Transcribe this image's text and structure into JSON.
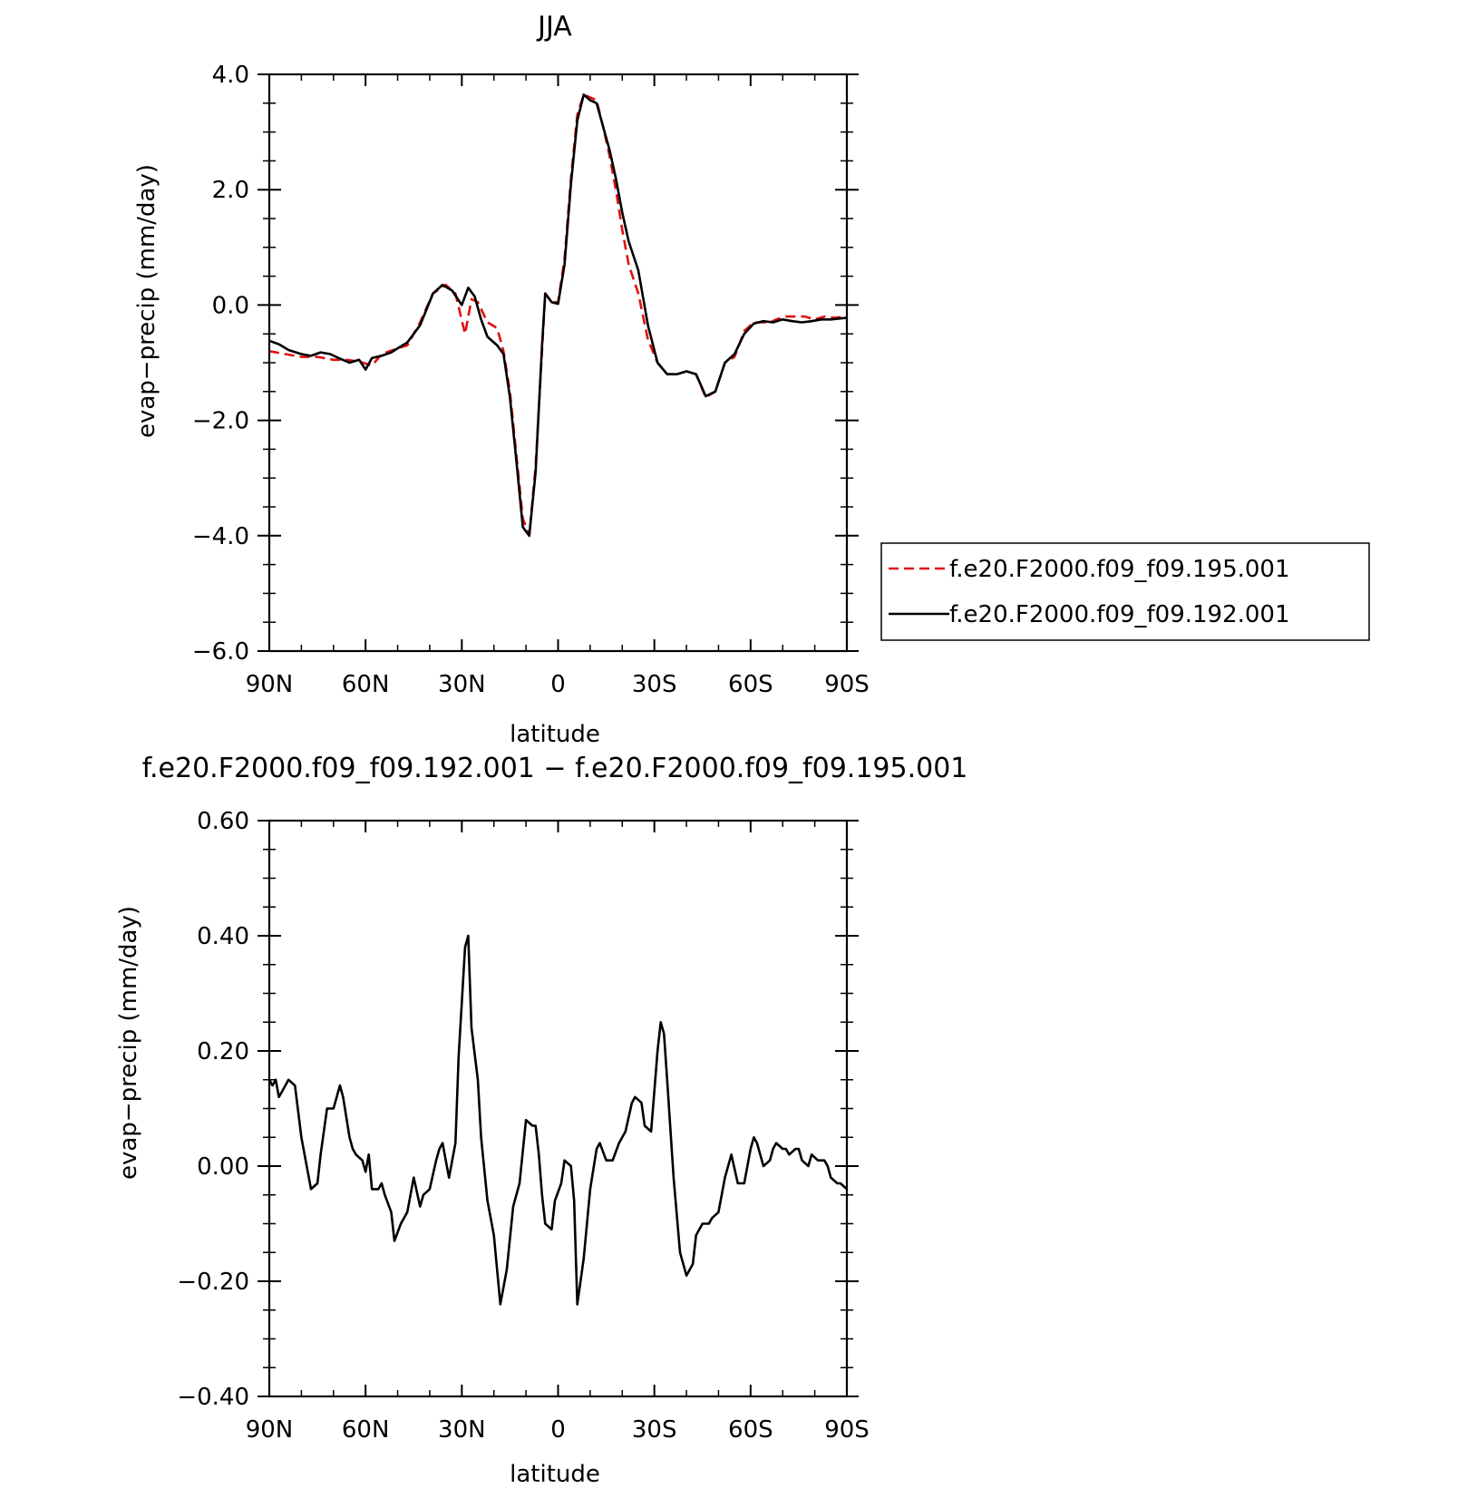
{
  "chart_data": [
    {
      "type": "line",
      "title": "JJA",
      "xlabel": "latitude",
      "ylabel": "evap−precip (mm/day)",
      "xlim": [
        90,
        -90
      ],
      "ylim": [
        -6.0,
        4.0
      ],
      "x_ticks": [
        90,
        60,
        30,
        0,
        -30,
        -60,
        -90
      ],
      "x_tick_labels": [
        "90N",
        "60N",
        "30N",
        "0",
        "30S",
        "60S",
        "90S"
      ],
      "y_ticks": [
        4.0,
        2.0,
        0.0,
        -2.0,
        -4.0,
        -6.0
      ],
      "y_tick_labels": [
        "4.0",
        "2.0",
        "0.0",
        "−2.0",
        "−4.0",
        "−6.0"
      ],
      "grid": false,
      "legend_position": "right",
      "series": [
        {
          "name": "f.e20.F2000.f09_f09.195.001",
          "color": "#e01010",
          "dash": "dashed",
          "x": [
            90,
            85,
            80,
            75,
            70,
            66,
            62,
            58,
            55,
            50,
            47,
            43,
            39,
            35,
            32,
            29,
            27,
            25,
            22,
            19,
            17,
            15,
            13,
            11,
            9,
            7,
            5,
            4,
            2,
            0,
            -2,
            -4,
            -6,
            -8,
            -10,
            -12,
            -14,
            -16,
            -18,
            -20,
            -22,
            -25,
            -28,
            -31,
            -34,
            -37,
            -40,
            -43,
            -46,
            -49,
            -52,
            -55,
            -58,
            -61,
            -64,
            -66,
            -68,
            -71,
            -74,
            -77,
            -80,
            -83,
            -86,
            -90
          ],
          "y": [
            -0.8,
            -0.85,
            -0.9,
            -0.9,
            -0.95,
            -0.95,
            -0.98,
            -1.05,
            -0.85,
            -0.75,
            -0.7,
            -0.3,
            0.2,
            0.35,
            0.2,
            -0.5,
            0.1,
            0.05,
            -0.3,
            -0.4,
            -0.8,
            -1.5,
            -2.6,
            -3.7,
            -4.0,
            -2.8,
            -0.8,
            0.2,
            0.05,
            0.05,
            0.8,
            2.2,
            3.3,
            3.65,
            3.6,
            3.55,
            3.1,
            2.6,
            2.0,
            1.3,
            0.7,
            0.2,
            -0.6,
            -1.0,
            -1.2,
            -1.2,
            -1.15,
            -1.2,
            -1.6,
            -1.5,
            -1.0,
            -0.9,
            -0.45,
            -0.3,
            -0.3,
            -0.3,
            -0.25,
            -0.2,
            -0.2,
            -0.2,
            -0.25,
            -0.2,
            -0.22,
            -0.2
          ]
        },
        {
          "name": "f.e20.F2000.f09_f09.192.001",
          "color": "#000000",
          "dash": "solid",
          "x": [
            90,
            87,
            84,
            80,
            77,
            74,
            71,
            68,
            65,
            62,
            60,
            58,
            55,
            52,
            50,
            47,
            43,
            39,
            36,
            33,
            30,
            28,
            26,
            24,
            22,
            19,
            17,
            15,
            13,
            11,
            9,
            7,
            5,
            4,
            2,
            0,
            -2,
            -4,
            -6,
            -8,
            -10,
            -12,
            -14,
            -16,
            -18,
            -20,
            -22,
            -25,
            -28,
            -31,
            -34,
            -37,
            -40,
            -43,
            -46,
            -49,
            -52,
            -55,
            -58,
            -61,
            -64,
            -67,
            -70,
            -73,
            -76,
            -79,
            -82,
            -85,
            -90
          ],
          "y": [
            -0.62,
            -0.68,
            -0.78,
            -0.85,
            -0.88,
            -0.82,
            -0.85,
            -0.93,
            -1.0,
            -0.95,
            -1.12,
            -0.92,
            -0.88,
            -0.82,
            -0.75,
            -0.65,
            -0.35,
            0.2,
            0.35,
            0.25,
            0.0,
            0.3,
            0.15,
            -0.25,
            -0.55,
            -0.7,
            -0.85,
            -1.6,
            -2.7,
            -3.85,
            -4.0,
            -2.9,
            -0.7,
            0.2,
            0.05,
            0.02,
            0.7,
            2.1,
            3.2,
            3.65,
            3.55,
            3.5,
            3.1,
            2.7,
            2.2,
            1.6,
            1.1,
            0.6,
            -0.35,
            -1.0,
            -1.2,
            -1.2,
            -1.15,
            -1.2,
            -1.58,
            -1.5,
            -1.0,
            -0.85,
            -0.5,
            -0.32,
            -0.28,
            -0.3,
            -0.25,
            -0.28,
            -0.3,
            -0.28,
            -0.25,
            -0.25,
            -0.22
          ]
        }
      ]
    },
    {
      "type": "line",
      "title": "f.e20.F2000.f09_f09.192.001 − f.e20.F2000.f09_f09.195.001",
      "xlabel": "latitude",
      "ylabel": "evap−precip (mm/day)",
      "xlim": [
        90,
        -90
      ],
      "ylim": [
        -0.4,
        0.6
      ],
      "x_ticks": [
        90,
        60,
        30,
        0,
        -30,
        -60,
        -90
      ],
      "x_tick_labels": [
        "90N",
        "60N",
        "30N",
        "0",
        "30S",
        "60S",
        "90S"
      ],
      "y_ticks": [
        0.6,
        0.4,
        0.2,
        0.0,
        -0.2,
        -0.4
      ],
      "y_tick_labels": [
        "0.60",
        "0.40",
        "0.20",
        "0.00",
        "−0.20",
        "−0.40"
      ],
      "grid": false,
      "series": [
        {
          "color": "#000000",
          "dash": "solid",
          "x": [
            90,
            89,
            88,
            87,
            86,
            84,
            82,
            80,
            79,
            77,
            75,
            74,
            72,
            70,
            68,
            67,
            65,
            64,
            63,
            61,
            60,
            59,
            58,
            56,
            55,
            54,
            52,
            51,
            49,
            48,
            47,
            46,
            45,
            43,
            42,
            40,
            38,
            37,
            36,
            34,
            32,
            31,
            29,
            28,
            27,
            25,
            24,
            22,
            20,
            18,
            16,
            14,
            12,
            10,
            8,
            7,
            6,
            5,
            4,
            2,
            1,
            -1,
            -2,
            -4,
            -5,
            -6,
            -8,
            -10,
            -12,
            -13,
            -15,
            -16,
            -17,
            -19,
            -21,
            -23,
            -24,
            -26,
            -27,
            -29,
            -31,
            -32,
            -33,
            -34,
            -36,
            -38,
            -40,
            -42,
            -43,
            -45,
            -47,
            -48,
            -50,
            -52,
            -54,
            -56,
            -58,
            -60,
            -61,
            -62,
            -64,
            -66,
            -67,
            -68,
            -70,
            -71,
            -72,
            -74,
            -75,
            -76,
            -78,
            -79,
            -81,
            -83,
            -84,
            -85,
            -87,
            -88,
            -90
          ],
          "y": [
            0.15,
            0.14,
            0.15,
            0.12,
            0.13,
            0.15,
            0.14,
            0.05,
            0.02,
            -0.04,
            -0.03,
            0.02,
            0.1,
            0.1,
            0.14,
            0.12,
            0.05,
            0.03,
            0.02,
            0.01,
            -0.01,
            0.02,
            -0.04,
            -0.04,
            -0.03,
            -0.05,
            -0.08,
            -0.13,
            -0.1,
            -0.09,
            -0.08,
            -0.05,
            -0.02,
            -0.07,
            -0.05,
            -0.04,
            0.01,
            0.03,
            0.04,
            -0.02,
            0.04,
            0.19,
            0.38,
            0.4,
            0.24,
            0.15,
            0.05,
            -0.06,
            -0.12,
            -0.24,
            -0.18,
            -0.07,
            -0.03,
            0.08,
            0.07,
            0.07,
            0.02,
            -0.05,
            -0.1,
            -0.11,
            -0.06,
            -0.03,
            0.01,
            0.0,
            -0.06,
            -0.24,
            -0.16,
            -0.04,
            0.03,
            0.04,
            0.01,
            0.01,
            0.01,
            0.04,
            0.06,
            0.11,
            0.12,
            0.11,
            0.07,
            0.06,
            0.2,
            0.25,
            0.23,
            0.15,
            -0.02,
            -0.15,
            -0.19,
            -0.17,
            -0.12,
            -0.1,
            -0.1,
            -0.09,
            -0.08,
            -0.02,
            0.02,
            -0.03,
            -0.03,
            0.03,
            0.05,
            0.04,
            0.0,
            0.01,
            0.03,
            0.04,
            0.03,
            0.03,
            0.02,
            0.03,
            0.03,
            0.01,
            0.0,
            0.02,
            0.01,
            0.01,
            0.0,
            -0.02,
            -0.03,
            -0.03,
            -0.04
          ]
        }
      ]
    }
  ]
}
